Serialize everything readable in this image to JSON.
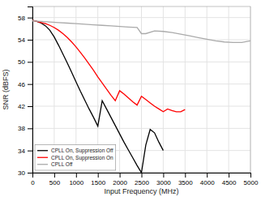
{
  "chart_data": {
    "type": "line",
    "xlabel": "Input Frequency (MHz)",
    "ylabel": "SNR (dBFS)",
    "xlim": [
      0,
      5000
    ],
    "ylim": [
      30,
      60
    ],
    "xticks": [
      0,
      500,
      1000,
      1500,
      2000,
      2500,
      3000,
      3500,
      4000,
      4500,
      5000
    ],
    "yticks": [
      30,
      34,
      38,
      42,
      46,
      50,
      54,
      58
    ],
    "grid": true,
    "legend": "lower left",
    "series": [
      {
        "name": "CPLL On, Suppression Off",
        "color": "#000000",
        "x": [
          0,
          100,
          200,
          300,
          400,
          500,
          600,
          700,
          800,
          900,
          1000,
          1100,
          1200,
          1300,
          1400,
          1500,
          1600,
          1700,
          1800,
          1900,
          2000,
          2100,
          2200,
          2300,
          2400,
          2500,
          2600,
          2700,
          2750,
          2800,
          2900,
          3000
        ],
        "values": [
          57.5,
          57.3,
          57.0,
          56.5,
          55.7,
          54.5,
          53.0,
          51.4,
          49.8,
          48.1,
          46.4,
          44.7,
          43.1,
          41.5,
          40.0,
          38.4,
          43.0,
          41.5,
          40.0,
          38.5,
          37.0,
          35.5,
          34.1,
          32.7,
          31.3,
          30.0,
          35.0,
          37.8,
          37.5,
          37.2,
          35.5,
          34.0
        ]
      },
      {
        "name": "CPLL On, Suppression On",
        "color": "#ff0000",
        "x": [
          0,
          100,
          200,
          300,
          400,
          500,
          600,
          700,
          800,
          900,
          1000,
          1100,
          1200,
          1300,
          1400,
          1500,
          1600,
          1700,
          1800,
          1900,
          2000,
          2100,
          2200,
          2300,
          2400,
          2500,
          2600,
          2700,
          2800,
          2900,
          3000,
          3100,
          3200,
          3300,
          3400,
          3500
        ],
        "values": [
          57.5,
          57.3,
          57.1,
          56.9,
          56.6,
          56.2,
          55.7,
          55.1,
          54.4,
          53.6,
          52.7,
          51.7,
          50.7,
          49.6,
          48.5,
          47.3,
          46.2,
          45.1,
          44.0,
          43.0,
          44.8,
          44.2,
          43.5,
          42.8,
          42.2,
          43.8,
          43.2,
          42.6,
          42.0,
          41.5,
          41.0,
          41.5,
          41.2,
          41.0,
          41.0,
          41.4
        ]
      },
      {
        "name": "CPLL Off",
        "color": "#aaaaaa",
        "x": [
          0,
          200,
          400,
          600,
          800,
          1000,
          1200,
          1400,
          1600,
          1800,
          2000,
          2200,
          2400,
          2500,
          2600,
          2800,
          3000,
          3200,
          3400,
          3600,
          3800,
          4000,
          4200,
          4400,
          4600,
          4800,
          5000
        ],
        "values": [
          57.4,
          57.3,
          57.2,
          57.1,
          57.0,
          56.9,
          56.8,
          56.7,
          56.6,
          56.5,
          56.4,
          56.3,
          56.2,
          55.1,
          55.1,
          55.6,
          55.5,
          55.3,
          55.0,
          54.7,
          54.4,
          54.1,
          53.8,
          53.6,
          53.5,
          53.5,
          53.8
        ]
      }
    ]
  }
}
